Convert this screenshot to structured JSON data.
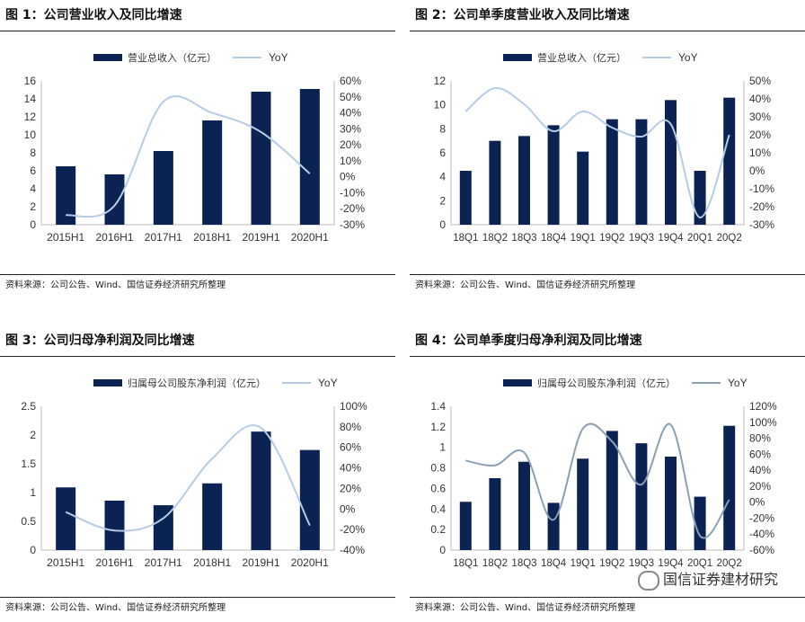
{
  "panels": [
    {
      "title": "图 1：公司营业收入及同比增速",
      "source": "资料来源：公司公告、Wind、国信证券经济研究所整理",
      "chart_data": {
        "type": "bar",
        "categories": [
          "2015H1",
          "2016H1",
          "2017H1",
          "2018H1",
          "2019H1",
          "2020H1"
        ],
        "series": [
          {
            "name": "营业总收入（亿元）",
            "kind": "bar",
            "axis": "left",
            "color": "#0b2352",
            "values": [
              6.5,
              5.6,
              8.2,
              11.6,
              14.8,
              15.1
            ]
          },
          {
            "name": "YoY",
            "kind": "line",
            "axis": "right",
            "color": "#b6cce6",
            "values": [
              -24,
              -18,
              47,
              40,
              28,
              2
            ]
          }
        ],
        "ylim": [
          0,
          16
        ],
        "yticks": [
          0,
          2,
          4,
          6,
          8,
          10,
          12,
          14,
          16
        ],
        "ytick_labels": [
          "0",
          "2",
          "4",
          "6",
          "8",
          "10",
          "12",
          "14",
          "16"
        ],
        "y2lim": [
          -30,
          60
        ],
        "y2ticks": [
          -30,
          -20,
          -10,
          0,
          10,
          20,
          30,
          40,
          50,
          60
        ],
        "y2tick_labels": [
          "-30%",
          "-20%",
          "-10%",
          "0%",
          "10%",
          "20%",
          "30%",
          "40%",
          "50%",
          "60%"
        ],
        "legend": "top"
      }
    },
    {
      "title": "图 2：公司单季度营业收入及同比增速",
      "source": "资料来源：公司公告、Wind、国信证券经济研究所整理",
      "chart_data": {
        "type": "bar",
        "categories": [
          "18Q1",
          "18Q2",
          "18Q3",
          "18Q4",
          "19Q1",
          "19Q2",
          "19Q3",
          "19Q4",
          "20Q1",
          "20Q2"
        ],
        "series": [
          {
            "name": "营业总收入（亿元）",
            "kind": "bar",
            "axis": "left",
            "color": "#0b2352",
            "values": [
              4.5,
              7.0,
              7.4,
              8.3,
              6.1,
              8.8,
              8.8,
              10.4,
              4.5,
              10.6
            ]
          },
          {
            "name": "YoY",
            "kind": "line",
            "axis": "right",
            "color": "#b6cce6",
            "values": [
              33,
              46,
              37,
              22,
              33,
              24,
              19,
              26,
              -26,
              20
            ]
          }
        ],
        "ylim": [
          0,
          12
        ],
        "yticks": [
          0,
          2,
          4,
          6,
          8,
          10,
          12
        ],
        "ytick_labels": [
          "0",
          "2",
          "4",
          "6",
          "8",
          "10",
          "12"
        ],
        "y2lim": [
          -30,
          50
        ],
        "y2ticks": [
          -30,
          -20,
          -10,
          0,
          10,
          20,
          30,
          40,
          50
        ],
        "y2tick_labels": [
          "-30%",
          "-20%",
          "-10%",
          "0%",
          "10%",
          "20%",
          "30%",
          "40%",
          "50%"
        ],
        "legend": "top"
      }
    },
    {
      "title": "图 3：公司归母净利润及同比增速",
      "source": "资料来源：公司公告、Wind、国信证券经济研究所整理",
      "chart_data": {
        "type": "bar",
        "categories": [
          "2015H1",
          "2016H1",
          "2017H1",
          "2018H1",
          "2019H1",
          "2020H1"
        ],
        "series": [
          {
            "name": "归属母公司股东净利润（亿元）",
            "kind": "bar",
            "axis": "left",
            "color": "#0b2352",
            "values": [
              1.09,
              0.86,
              0.78,
              1.16,
              2.06,
              1.74
            ]
          },
          {
            "name": "YoY",
            "kind": "line",
            "axis": "right",
            "color": "#b6cce6",
            "values": [
              -3,
              -21,
              -9,
              49,
              79,
              -16
            ]
          }
        ],
        "ylim": [
          0,
          2.5
        ],
        "yticks": [
          0,
          0.5,
          1,
          1.5,
          2,
          2.5
        ],
        "ytick_labels": [
          "0",
          "0.5",
          "1",
          "1.5",
          "2",
          "2.5"
        ],
        "y2lim": [
          -40,
          100
        ],
        "y2ticks": [
          -40,
          -20,
          0,
          20,
          40,
          60,
          80,
          100
        ],
        "y2tick_labels": [
          "-40%",
          "-20%",
          "0%",
          "20%",
          "40%",
          "60%",
          "80%",
          "100%"
        ],
        "legend": "top"
      }
    },
    {
      "title": "图 4：公司单季度归母净利润及同比增速",
      "source": "资料来源：公司公告、Wind、国信证券经济研究所整理",
      "chart_data": {
        "type": "bar",
        "categories": [
          "18Q1",
          "18Q2",
          "18Q3",
          "18Q4",
          "19Q1",
          "19Q2",
          "19Q3",
          "19Q4",
          "20Q1",
          "20Q2"
        ],
        "series": [
          {
            "name": "归属母公司股东净利润（亿元）",
            "kind": "bar",
            "axis": "left",
            "color": "#0b2352",
            "values": [
              0.47,
              0.7,
              0.86,
              0.46,
              0.89,
              1.16,
              1.04,
              0.91,
              0.52,
              1.21
            ]
          },
          {
            "name": "YoY",
            "kind": "line",
            "axis": "right",
            "color": "#8aa0b4",
            "values": [
              52,
              46,
              62,
              -22,
              92,
              76,
              22,
              97,
              -42,
              3
            ]
          }
        ],
        "ylim": [
          0,
          1.4
        ],
        "yticks": [
          0,
          0.2,
          0.4,
          0.6,
          0.8,
          1,
          1.2,
          1.4
        ],
        "ytick_labels": [
          "0",
          "0.2",
          "0.4",
          "0.6",
          "0.8",
          "1",
          "1.2",
          "1.4"
        ],
        "y2lim": [
          -60,
          120
        ],
        "y2ticks": [
          -60,
          -40,
          -20,
          0,
          20,
          40,
          60,
          80,
          100,
          120
        ],
        "y2tick_labels": [
          "-60%",
          "-40%",
          "-20%",
          "0%",
          "20%",
          "40%",
          "60%",
          "80%",
          "100%",
          "120%"
        ],
        "legend": "top"
      }
    }
  ],
  "watermark": "国信证券建材研究"
}
